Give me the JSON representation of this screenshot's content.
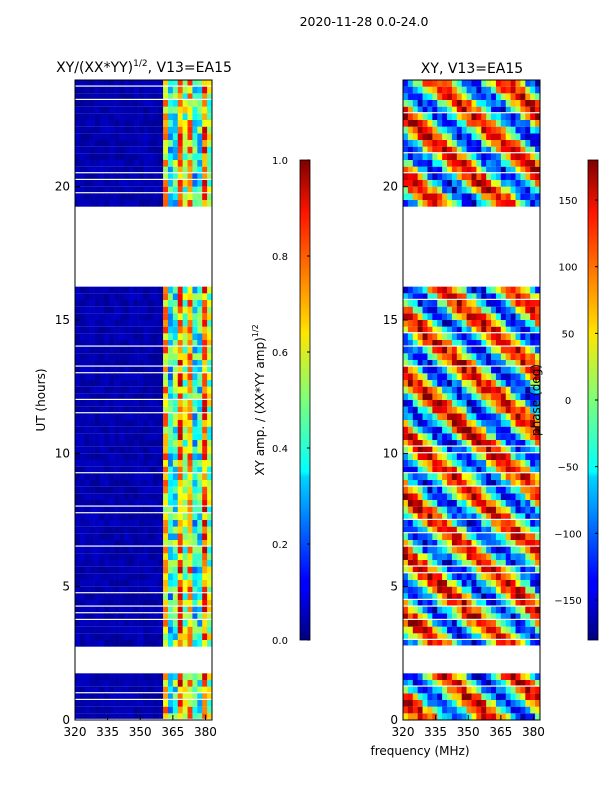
{
  "suptitle": "2020-11-28 0.0-24.0",
  "shared_xlabel": "frequency (MHz)",
  "chart_data": [
    {
      "type": "heatmap",
      "title": "XY/(XX*YY)",
      "title_superscript": "1/2",
      "title_suffix": ", V13=EA15",
      "xlabel": "",
      "ylabel": "UT (hours)",
      "xlim": [
        320,
        383
      ],
      "ylim": [
        0,
        24
      ],
      "xticks": [
        320,
        335,
        350,
        365,
        380
      ],
      "yticks": [
        0,
        5,
        10,
        15,
        20
      ],
      "blank_ut_ranges": [
        [
          1.7,
          2.7
        ],
        [
          16.2,
          19.2
        ]
      ],
      "active_freq_range": [
        360,
        383
      ],
      "colorbar": {
        "label": "XY amp. / (XX*YY amp)",
        "label_superscript": "1/2",
        "range": [
          0.0,
          1.0
        ],
        "ticks": [
          "0.0",
          "0.2",
          "0.4",
          "0.6",
          "0.8",
          "1.0"
        ],
        "tick_values": [
          0.0,
          0.2,
          0.4,
          0.6,
          0.8,
          1.0
        ]
      }
    },
    {
      "type": "heatmap",
      "title": "XY, V13=EA15",
      "xlabel": "frequency (MHz)",
      "ylabel": "",
      "xlim": [
        320,
        383
      ],
      "ylim": [
        0,
        24
      ],
      "xticks": [
        320,
        335,
        350,
        365,
        380
      ],
      "yticks": [
        0,
        5,
        10,
        15,
        20
      ],
      "blank_ut_ranges": [
        [
          1.7,
          2.7
        ],
        [
          16.2,
          19.2
        ]
      ],
      "colorbar": {
        "label": "phase (deg)",
        "range": [
          -180,
          180
        ],
        "ticks": [
          "150",
          "100",
          "50",
          "0",
          "−50",
          "−100",
          "−150"
        ],
        "tick_values": [
          150,
          100,
          50,
          0,
          -50,
          -100,
          -150
        ]
      }
    }
  ]
}
